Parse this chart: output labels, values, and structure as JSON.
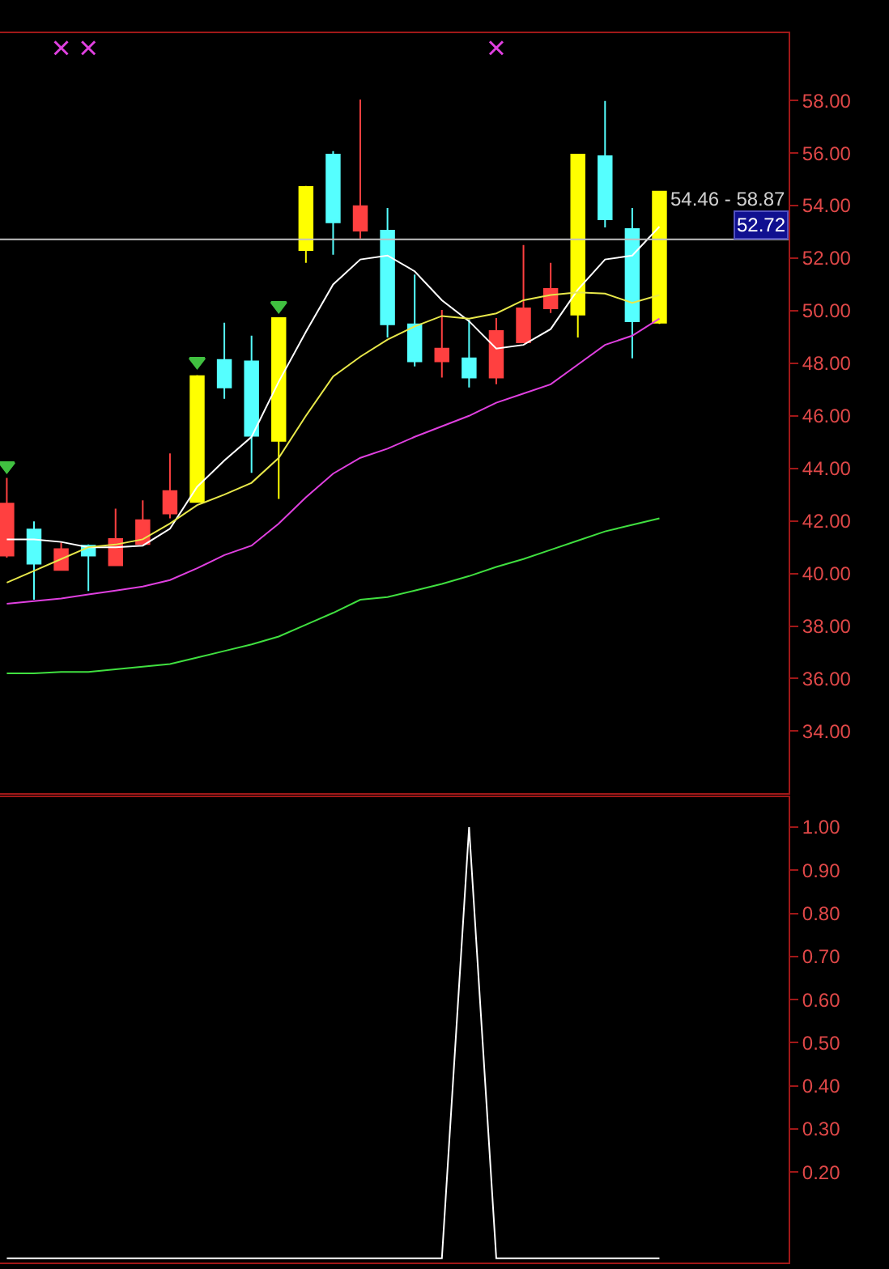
{
  "chart_data": [
    {
      "type": "candlestick",
      "categories": [
        null,
        null,
        null,
        null,
        null,
        null,
        null,
        null,
        null,
        null,
        null,
        null,
        null,
        null,
        null,
        null,
        null,
        null,
        null,
        null,
        null,
        null,
        null,
        null,
        null
      ],
      "ohlc": [
        [
          40.68,
          43.64,
          40.6,
          42.66
        ],
        [
          41.67,
          41.98,
          39.0,
          40.37
        ],
        [
          40.13,
          41.18,
          40.1,
          40.93
        ],
        [
          41.06,
          41.1,
          39.33,
          40.68
        ],
        [
          40.31,
          42.47,
          40.3,
          41.31
        ],
        [
          41.12,
          42.78,
          41.1,
          42.03
        ],
        [
          42.28,
          44.57,
          42.1,
          43.14
        ],
        [
          42.72,
          47.55,
          42.7,
          47.51
        ],
        [
          48.13,
          49.54,
          46.65,
          47.08
        ],
        [
          48.07,
          49.05,
          43.83,
          45.24
        ],
        [
          45.05,
          49.75,
          42.84,
          49.72
        ],
        [
          52.31,
          54.75,
          51.82,
          54.71
        ],
        [
          55.94,
          56.07,
          52.13,
          53.36
        ],
        [
          53.05,
          58.04,
          52.75,
          53.98
        ],
        [
          53.05,
          53.91,
          48.98,
          49.48
        ],
        [
          49.48,
          51.38,
          47.88,
          48.07
        ],
        [
          48.07,
          50.03,
          47.46,
          48.56
        ],
        [
          48.19,
          49.66,
          47.08,
          47.46
        ],
        [
          47.46,
          49.72,
          47.2,
          49.23
        ],
        [
          48.8,
          52.5,
          48.78,
          50.09
        ],
        [
          50.09,
          51.82,
          49.91,
          50.83
        ],
        [
          49.85,
          55.95,
          48.98,
          55.94
        ],
        [
          55.88,
          57.98,
          53.17,
          53.48
        ],
        [
          53.11,
          53.91,
          48.19,
          49.6
        ],
        [
          49.54,
          54.55,
          49.5,
          54.53
        ]
      ],
      "colors": [
        "#ff4040",
        "#55ffff",
        "#ff4040",
        "#55ffff",
        "#ff4040",
        "#ff4040",
        "#ff4040",
        "#ffff00",
        "#55ffff",
        "#55ffff",
        "#ffff00",
        "#ffff00",
        "#55ffff",
        "#ff4040",
        "#55ffff",
        "#55ffff",
        "#ff4040",
        "#55ffff",
        "#ff4040",
        "#ff4040",
        "#ff4040",
        "#ffff00",
        "#55ffff",
        "#55ffff",
        "#ffff00"
      ],
      "series": [
        {
          "type": "line",
          "color": "#ffffff",
          "values": [
            41.3,
            41.3,
            41.2,
            41.0,
            41.0,
            41.06,
            41.7,
            43.3,
            44.3,
            45.2,
            47.3,
            49.2,
            51.0,
            51.95,
            52.1,
            51.5,
            50.4,
            49.6,
            48.56,
            48.7,
            49.3,
            50.8,
            51.95,
            52.1,
            53.2
          ]
        },
        {
          "type": "line",
          "color": "#e8e84a",
          "values": [
            39.65,
            40.1,
            40.55,
            41.0,
            41.1,
            41.3,
            41.9,
            42.6,
            43.0,
            43.45,
            44.4,
            46.0,
            47.5,
            48.25,
            48.9,
            49.4,
            49.8,
            49.7,
            49.9,
            50.4,
            50.6,
            50.7,
            50.65,
            50.3,
            50.6
          ]
        },
        {
          "type": "line",
          "color": "#e040e0",
          "values": [
            38.85,
            38.95,
            39.05,
            39.2,
            39.35,
            39.5,
            39.75,
            40.2,
            40.7,
            41.06,
            41.9,
            42.9,
            43.8,
            44.4,
            44.75,
            45.2,
            45.6,
            46.0,
            46.5,
            46.85,
            47.2,
            47.95,
            48.7,
            49.05,
            49.7
          ]
        },
        {
          "type": "line",
          "color": "#40e040",
          "values": [
            36.2,
            36.2,
            36.25,
            36.25,
            36.35,
            36.45,
            36.55,
            36.8,
            37.05,
            37.3,
            37.6,
            38.05,
            38.5,
            39.0,
            39.1,
            39.35,
            39.6,
            39.9,
            40.25,
            40.55,
            40.9,
            41.25,
            41.6,
            41.85,
            42.1
          ]
        },
        {
          "type": "scatter",
          "color": "#40c040",
          "marker": "triangle",
          "values": [
            44.1,
            null,
            null,
            null,
            null,
            null,
            null,
            48.07,
            null,
            null,
            50.2,
            null,
            null,
            null,
            null,
            null,
            null,
            null,
            null,
            null,
            null,
            null,
            null,
            null,
            null
          ]
        },
        {
          "type": "scatter",
          "color": "#e040e0",
          "marker": "cross",
          "values": [
            null,
            null,
            60.0,
            60.0,
            null,
            null,
            null,
            null,
            null,
            null,
            null,
            null,
            null,
            null,
            null,
            null,
            null,
            null,
            60.0,
            null,
            null,
            null,
            null,
            null,
            null
          ]
        }
      ],
      "ylim": [
        31.64,
        60.57
      ],
      "yticks": [
        {
          "value": 34,
          "label": "34.00"
        },
        {
          "value": 36,
          "label": "36.00"
        },
        {
          "value": 38,
          "label": "38.00"
        },
        {
          "value": 40,
          "label": "40.00"
        },
        {
          "value": 42,
          "label": "42.00"
        },
        {
          "value": 44,
          "label": "44.00"
        },
        {
          "value": 46,
          "label": "46.00"
        },
        {
          "value": 48,
          "label": "48.00"
        },
        {
          "value": 50,
          "label": "50.00"
        },
        {
          "value": 52,
          "label": "52.00"
        },
        {
          "value": 54,
          "label": "54.00"
        },
        {
          "value": 56,
          "label": "56.00"
        },
        {
          "value": 58,
          "label": "58.00"
        }
      ],
      "ref_lines": [
        {
          "axis": "y",
          "value": 52.72,
          "label": "52.72",
          "color": "#c0c0c0"
        }
      ],
      "annotations": [
        "54.46 - 58.87"
      ],
      "tick_labels": "y",
      "grid": false
    },
    {
      "type": "line",
      "categories": [
        null,
        null,
        null,
        null,
        null,
        null,
        null,
        null,
        null,
        null,
        null,
        null,
        null,
        null,
        null,
        null,
        null,
        null,
        null,
        null,
        null,
        null,
        null,
        null,
        null
      ],
      "values": [
        0,
        0,
        0,
        0,
        0,
        0,
        0,
        0,
        0,
        0,
        0,
        0,
        0,
        0,
        0,
        0,
        0,
        1.0,
        0,
        0,
        0,
        0,
        0,
        0,
        0
      ],
      "color": "#ffffff",
      "ylim": [
        -0.01,
        1.07
      ],
      "yticks": [
        {
          "value": 0.2,
          "label": "0.20"
        },
        {
          "value": 0.3,
          "label": "0.30"
        },
        {
          "value": 0.4,
          "label": "0.40"
        },
        {
          "value": 0.5,
          "label": "0.50"
        },
        {
          "value": 0.6,
          "label": "0.60"
        },
        {
          "value": 0.7,
          "label": "0.70"
        },
        {
          "value": 0.8,
          "label": "0.80"
        },
        {
          "value": 0.9,
          "label": "0.90"
        },
        {
          "value": 1.0,
          "label": "1.00"
        }
      ],
      "tick_labels": "y",
      "grid": false
    }
  ]
}
